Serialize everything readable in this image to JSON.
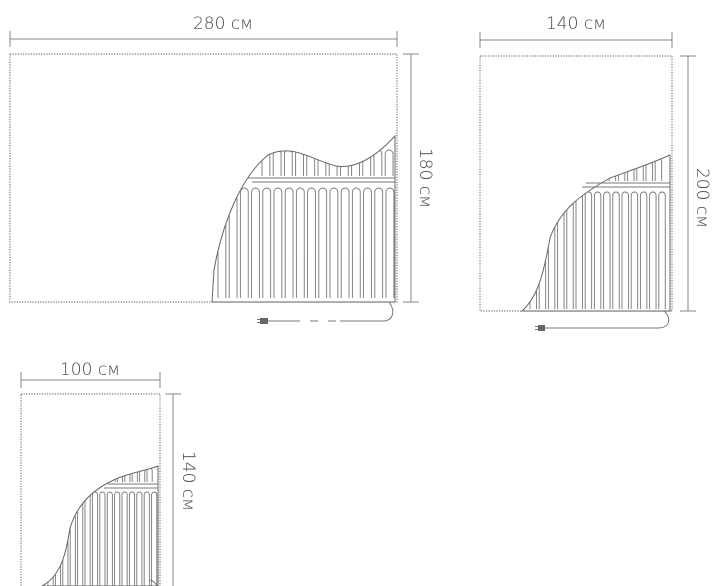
{
  "mats": [
    {
      "id": "mat-280x180",
      "width_label": "280 см",
      "height_label": "180 см"
    },
    {
      "id": "mat-140x200",
      "width_label": "140 см",
      "height_label": "200 см"
    },
    {
      "id": "mat-100x140",
      "width_label": "100 см",
      "height_label": "140 см"
    }
  ],
  "colors": {
    "lines": "#888888",
    "frame": "#777777",
    "text": "#444444"
  }
}
